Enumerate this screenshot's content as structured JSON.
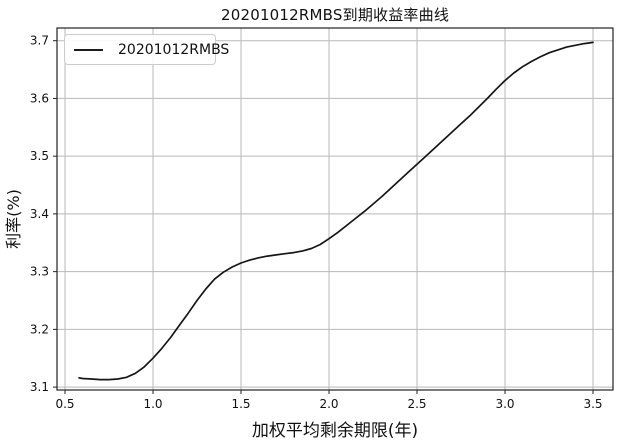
{
  "chart_data": {
    "type": "line",
    "title": "20201012RMBS到期收益率曲线",
    "xlabel": "加权平均剩余期限(年)",
    "ylabel": "利率(%)",
    "grid": true,
    "legend_position": "upper left",
    "xlim": [
      0.4545,
      3.6136
    ],
    "ylim": [
      3.095,
      3.722
    ],
    "xticks": [
      0.5,
      1.0,
      1.5,
      2.0,
      2.5,
      3.0,
      3.5
    ],
    "yticks": [
      3.1,
      3.2,
      3.3,
      3.4,
      3.5,
      3.6,
      3.7
    ],
    "xtick_labels": [
      "0.5",
      "1.0",
      "1.5",
      "2.0",
      "2.5",
      "3.0",
      "3.5"
    ],
    "ytick_labels": [
      "3.1",
      "3.2",
      "3.3",
      "3.4",
      "3.5",
      "3.6",
      "3.7"
    ],
    "series": [
      {
        "name": "20201012RMBS",
        "color": "#161616",
        "x": [
          0.58,
          0.6,
          0.65,
          0.7,
          0.75,
          0.8,
          0.85,
          0.9,
          0.95,
          1.0,
          1.05,
          1.1,
          1.15,
          1.2,
          1.25,
          1.3,
          1.35,
          1.4,
          1.45,
          1.5,
          1.55,
          1.6,
          1.65,
          1.7,
          1.75,
          1.8,
          1.85,
          1.9,
          1.95,
          2.0,
          2.05,
          2.1,
          2.15,
          2.2,
          2.25,
          2.3,
          2.35,
          2.4,
          2.45,
          2.5,
          2.55,
          2.6,
          2.65,
          2.7,
          2.75,
          2.8,
          2.85,
          2.9,
          2.95,
          3.0,
          3.05,
          3.1,
          3.15,
          3.2,
          3.25,
          3.3,
          3.35,
          3.4,
          3.45,
          3.5
        ],
        "y": [
          3.116,
          3.115,
          3.114,
          3.113,
          3.113,
          3.114,
          3.117,
          3.124,
          3.135,
          3.15,
          3.167,
          3.186,
          3.207,
          3.228,
          3.25,
          3.27,
          3.287,
          3.299,
          3.308,
          3.315,
          3.32,
          3.324,
          3.327,
          3.329,
          3.331,
          3.333,
          3.336,
          3.34,
          3.347,
          3.357,
          3.368,
          3.38,
          3.392,
          3.404,
          3.417,
          3.43,
          3.444,
          3.458,
          3.472,
          3.486,
          3.5,
          3.514,
          3.528,
          3.542,
          3.556,
          3.57,
          3.585,
          3.6,
          3.616,
          3.631,
          3.644,
          3.655,
          3.664,
          3.672,
          3.679,
          3.684,
          3.689,
          3.692,
          3.695,
          3.697
        ]
      }
    ]
  },
  "colors": {
    "curve": "#161616",
    "grid": "#b9b9b9",
    "axis_border": "#222222",
    "tick": "#222222",
    "text": "#111111",
    "legend_border": "#cccccc",
    "background": "#ffffff"
  }
}
